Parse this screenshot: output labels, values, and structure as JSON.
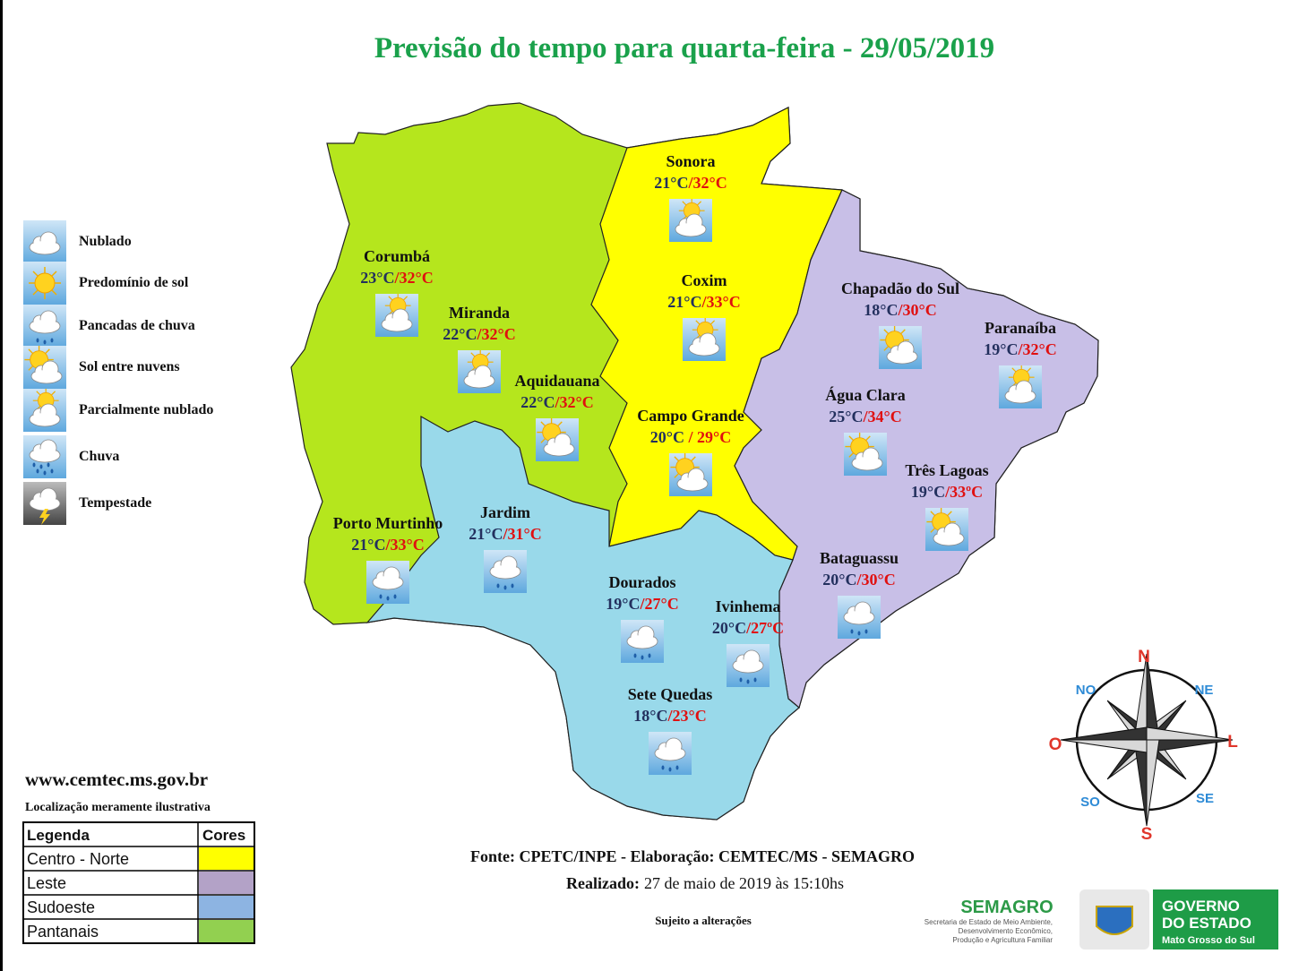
{
  "title": "Previsão do tempo para quarta-feira - 29/05/2019",
  "weather_legend": [
    {
      "label": "Nublado",
      "icon": "cloud"
    },
    {
      "label": "Predomínio de sol",
      "icon": "sun"
    },
    {
      "label": "Pancadas de chuva",
      "icon": "showers"
    },
    {
      "label": "Sol entre nuvens",
      "icon": "sun-cloud"
    },
    {
      "label": "Parcialmente nublado",
      "icon": "partly"
    },
    {
      "label": "Chuva",
      "icon": "rain"
    },
    {
      "label": "Tempestade",
      "icon": "storm"
    }
  ],
  "cities": [
    {
      "name": "Sonora",
      "min": "21°C",
      "sep": "/",
      "max": "32°C",
      "icon": "partly"
    },
    {
      "name": "Corumbá",
      "min": "23°C",
      "sep": "/",
      "max": "32°C",
      "icon": "partly"
    },
    {
      "name": "Miranda",
      "min": "22°C",
      "sep": "/",
      "max": "32°C",
      "icon": "partly"
    },
    {
      "name": "Coxim",
      "min": "21°C",
      "sep": "/",
      "max": "33°C",
      "icon": "partly"
    },
    {
      "name": "Aquidauana",
      "min": "22°C",
      "sep": "/",
      "max": "32°C",
      "icon": "sun-cloud"
    },
    {
      "name": "Chapadão do Sul",
      "min": "18°C",
      "sep": "/",
      "max": "30°C",
      "icon": "sun-cloud"
    },
    {
      "name": "Paranaíba",
      "min": "19°C",
      "sep": "/",
      "max": "32°C",
      "icon": "partly"
    },
    {
      "name": "Campo Grande",
      "min": "20°C",
      "sep": " / ",
      "max": "29°C",
      "icon": "sun-cloud"
    },
    {
      "name": "Água Clara",
      "min": "25°C",
      "sep": "/",
      "max": "34°C",
      "icon": "sun-cloud"
    },
    {
      "name": "Três Lagoas",
      "min": "19°C",
      "sep": "/",
      "max": "33ºC",
      "icon": "sun-cloud"
    },
    {
      "name": "Porto Murtinho",
      "min": "21°C",
      "sep": "/",
      "max": "33°C",
      "icon": "showers"
    },
    {
      "name": "Jardim",
      "min": "21°C",
      "sep": "/",
      "max": "31°C",
      "icon": "showers"
    },
    {
      "name": "Bataguassu",
      "min": "20°C",
      "sep": "/",
      "max": "30°C",
      "icon": "showers"
    },
    {
      "name": "Dourados",
      "min": "19°C",
      "sep": "/",
      "max": "27°C",
      "icon": "showers"
    },
    {
      "name": "Ivinhema",
      "min": "20°C",
      "sep": "/",
      "max": "27ºC",
      "icon": "showers"
    },
    {
      "name": "Sete Quedas",
      "min": "18°C",
      "sep": "/",
      "max": "23°C",
      "icon": "showers"
    }
  ],
  "website": "www.cemtec.ms.gov.br",
  "disclaimer": "Localização meramente ilustrativa",
  "region_table": {
    "headers": [
      "Legenda",
      "Cores"
    ],
    "rows": [
      {
        "name": "Centro - Norte",
        "color": "#ffff00",
        "map_color": "#ffff00"
      },
      {
        "name": "Leste",
        "color": "#b3a2c7",
        "map_color": "#c8bfe7"
      },
      {
        "name": "Sudoeste",
        "color": "#8db4e2",
        "map_color": "#99d9ea"
      },
      {
        "name": "Pantanais",
        "color": "#92d050",
        "map_color": "#b5e61d"
      }
    ]
  },
  "compass": {
    "N": "N",
    "NE": "NE",
    "L": "L",
    "SE": "SE",
    "S": "S",
    "SO": "SO",
    "O": "O",
    "NO": "NO"
  },
  "source": "Fonte: CPETC/INPE - Elaboração: CEMTEC/MS - SEMAGRO",
  "made_label": "Realizado:",
  "made_date": "27 de maio de 2019 às 15:10hs",
  "notice": "Sujeito a alterações",
  "logos": {
    "semagro": "SEMAGRO",
    "semagro_sub": [
      "Secretaria de Estado de Meio Ambiente,",
      "Desenvolvimento Econômico,",
      "Produção e Agricultura Familiar"
    ],
    "gov": [
      "GOVERNO",
      "DO ESTADO"
    ],
    "gov_sub": "Mato Grosso do Sul"
  }
}
